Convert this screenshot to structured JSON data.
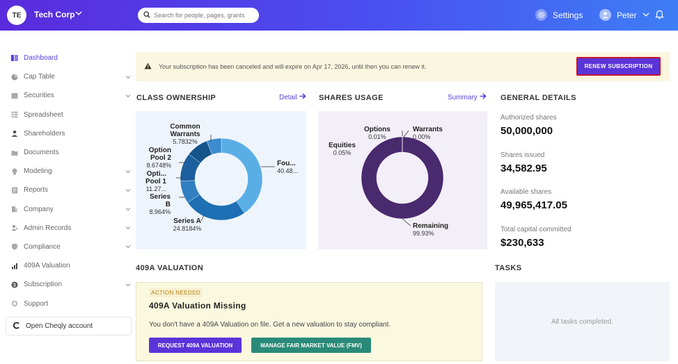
{
  "topbar": {
    "avatar_initials": "TE",
    "org_name": "Tech Corp",
    "search_placeholder": "Search for people, pages, grants",
    "settings_label": "Settings",
    "user_name": "Peter"
  },
  "sidebar": {
    "items": [
      {
        "label": "Dashboard",
        "icon": "dashboard-icon",
        "active": true
      },
      {
        "label": "Cap Table",
        "icon": "pie-icon",
        "chevron": true
      },
      {
        "label": "Securities",
        "icon": "securities-icon",
        "chevron": true
      },
      {
        "label": "Spreadsheet",
        "icon": "spreadsheet-icon"
      },
      {
        "label": "Shareholders",
        "icon": "person-icon"
      },
      {
        "label": "Documents",
        "icon": "folder-icon"
      },
      {
        "label": "Modeling",
        "icon": "bulb-icon",
        "chevron": true
      },
      {
        "label": "Reports",
        "icon": "reports-icon",
        "chevron": true
      },
      {
        "label": "Company",
        "icon": "company-icon",
        "chevron": true
      },
      {
        "label": "Admin Records",
        "icon": "admin-icon",
        "chevron": true
      },
      {
        "label": "Compliance",
        "icon": "shield-icon",
        "chevron": true
      },
      {
        "label": "409A Valuation",
        "icon": "chart-icon"
      },
      {
        "label": "Subscription",
        "icon": "dollar-icon",
        "chevron": true
      },
      {
        "label": "Support",
        "icon": "support-icon"
      }
    ],
    "cheqly_label": "Open Cheqly account"
  },
  "banner": {
    "message": "Your subscription has been canceled and will expire on Apr 17, 2026, until then you can renew it.",
    "renew_label": "RENEW SUBSCRIPTION"
  },
  "class_ownership": {
    "title": "CLASS OWNERSHIP",
    "link": "Detail",
    "labels": {
      "common_warrants": {
        "name": "Common Warrants",
        "pct": "5.7832%"
      },
      "option_pool_2": {
        "name": "Option Pool 2",
        "pct": "8.6748%"
      },
      "option_pool_1": {
        "name": "Opti... Pool 1",
        "pct": "11.27..."
      },
      "series_b": {
        "name": "Series B",
        "pct": "8.964%"
      },
      "series_a": {
        "name": "Series A",
        "pct": "24.8184%"
      },
      "founders": {
        "name": "Fou...",
        "pct": "40.48..."
      }
    }
  },
  "shares_usage": {
    "title": "SHARES USAGE",
    "link": "Summary",
    "labels": {
      "options": {
        "name": "Options",
        "pct": "0.01%"
      },
      "warrants": {
        "name": "Warrants",
        "pct": "0.00%"
      },
      "equities": {
        "name": "Equities",
        "pct": "0.05%"
      },
      "remaining": {
        "name": "Remaining",
        "pct": "99.93%"
      }
    }
  },
  "chart_data": [
    {
      "type": "pie",
      "title": "CLASS OWNERSHIP",
      "variant": "donut",
      "labels": [
        "Founders",
        "Series A",
        "Series B",
        "Option Pool 1",
        "Option Pool 2",
        "Common Warrants"
      ],
      "values": [
        40.48,
        24.8184,
        8.964,
        11.27,
        8.6748,
        5.7832
      ],
      "colors": [
        "#5aaee6",
        "#1e6fb3",
        "#2f7fc2",
        "#1b5f9e",
        "#145489",
        "#3b8dd0"
      ]
    },
    {
      "type": "pie",
      "title": "SHARES USAGE",
      "variant": "donut",
      "labels": [
        "Remaining",
        "Equities",
        "Options",
        "Warrants"
      ],
      "values": [
        99.93,
        0.05,
        0.01,
        0.0
      ],
      "colors": [
        "#4a2a6e",
        "#4a2a6e",
        "#4a2a6e",
        "#4a2a6e"
      ]
    }
  ],
  "general_details": {
    "title": "GENERAL DETAILS",
    "authorized_label": "Authorized shares",
    "authorized_value": "50,000,000",
    "issued_label": "Shares issued",
    "issued_value": "34,582.95",
    "available_label": "Available shares",
    "available_value": "49,965,417.05",
    "capital_label": "Total capital committed",
    "capital_value": "$230,633"
  },
  "valuation": {
    "title": "409A VALUATION",
    "badge": "ACTION NEEDED",
    "heading": "409A Valuation Missing",
    "text": "You don't have a 409A Valuation on file. Get a new valuation to stay compliant.",
    "request_label": "REQUEST 409A VALUATION",
    "fmv_label": "MANAGE FAIR MARKET VALUE (FMV)"
  },
  "tasks": {
    "title": "TASKS",
    "empty_text": "All tasks completed."
  }
}
